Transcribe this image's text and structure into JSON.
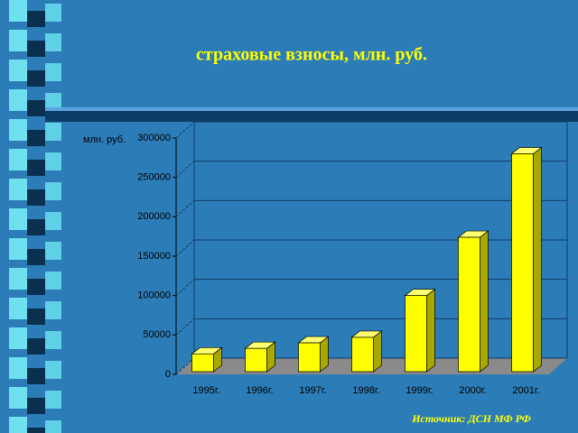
{
  "chart_data": {
    "type": "bar3d",
    "title": "страховые взносы, млн. руб.",
    "y_label": "млн. руб.",
    "source": "Источник:  ДСН  МФ  РФ",
    "categories": [
      "1995г.",
      "1996г.",
      "1997г.",
      "1998г.",
      "1999г.",
      "2000г.",
      "2001г."
    ],
    "values": [
      26000,
      33000,
      40000,
      47000,
      100000,
      174000,
      280000
    ],
    "color": "#ffff00",
    "ylim": [
      0,
      300000
    ],
    "yticks": [
      0,
      50000,
      100000,
      150000,
      200000,
      250000,
      300000
    ],
    "grid": true
  }
}
